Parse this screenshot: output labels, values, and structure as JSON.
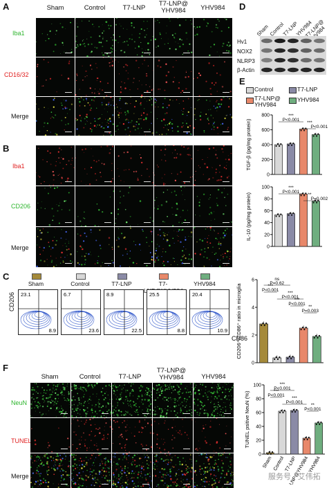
{
  "panels": {
    "A": "A",
    "B": "B",
    "C": "C",
    "D": "D",
    "E": "E",
    "F": "F"
  },
  "groups": [
    "Sham",
    "Control",
    "T7-LNP",
    "T7-LNP@\nYHV984",
    "YHV984"
  ],
  "panelA": {
    "rows": [
      "Iba1",
      "CD16/32",
      "Merge"
    ],
    "row_colors": [
      "#2db52d",
      "#e02020",
      "#111111"
    ]
  },
  "panelB": {
    "rows": [
      "Iba1",
      "CD206",
      "Merge"
    ],
    "row_colors": [
      "#e02020",
      "#2db52d",
      "#111111"
    ]
  },
  "panelD": {
    "lanes": [
      "Sham",
      "Control",
      "T7-LNP",
      "YHV984",
      "T7-LNP@\nYHV984"
    ],
    "blots": [
      "Hv1",
      "NOX2",
      "NLRP3",
      "β-Actin"
    ]
  },
  "panelC": {
    "legend": [
      "Sham",
      "Control",
      "T7-LNP",
      "T7-LNP@YHV984",
      "YHV984"
    ],
    "legend_colors": [
      "#a58a3a",
      "#d8d8d8",
      "#8a8aa6",
      "#e8886a",
      "#6fae7f"
    ],
    "ylabel": "CD206",
    "xlabel": "CD86",
    "quadrants": [
      {
        "ul": "23.1",
        "lr": "8.9"
      },
      {
        "ul": "6.7",
        "lr": "23.6"
      },
      {
        "ul": "8.9",
        "lr": "22.5"
      },
      {
        "ul": "25.5",
        "lr": "8.8"
      },
      {
        "ul": "20.4",
        "lr": "10.9"
      }
    ]
  },
  "panelF": {
    "groups": [
      "Sham",
      "Control",
      "T7-LNP",
      "T7-LNP@\nYHV984",
      "YHV984"
    ],
    "rows": [
      "NeuN",
      "TUNEL",
      "Merge"
    ],
    "row_colors": [
      "#2db52d",
      "#e02020",
      "#111111"
    ]
  },
  "colors": {
    "sham": "#a58a3a",
    "control": "#d8d8d8",
    "t7lnp": "#8a8aa6",
    "t7yhv": "#e8886a",
    "yhv": "#6fae7f"
  },
  "chart_data": [
    {
      "type": "bar",
      "panel": "E-top",
      "categories": [
        "Control",
        "T7-LNP",
        "T7-LNP@YHV984",
        "YHV984"
      ],
      "values": [
        400,
        410,
        610,
        535
      ],
      "ylabel": "TGF-β (pg/mg protein)",
      "ylim": [
        0,
        800
      ],
      "yticks": [
        0,
        200,
        400,
        600,
        800
      ],
      "annotations": [
        "***",
        "P<0.001",
        "***",
        "P<0.001"
      ]
    },
    {
      "type": "bar",
      "panel": "E-bottom",
      "categories": [
        "Control",
        "T7-LNP",
        "T7-LNP@YHV984",
        "YHV984"
      ],
      "values": [
        53,
        55,
        88,
        76
      ],
      "ylabel": "IL-10 (pg/mg protein)",
      "ylim": [
        0,
        100
      ],
      "yticks": [
        0,
        20,
        40,
        60,
        80,
        100
      ],
      "annotations": [
        "***",
        "P<0.001",
        "**",
        "P=0.002"
      ]
    },
    {
      "type": "bar",
      "panel": "C-right",
      "categories": [
        "Sham",
        "Control",
        "T7-LNP",
        "T7-LNP@YHV984",
        "YHV984"
      ],
      "values": [
        2.8,
        0.35,
        0.4,
        2.5,
        1.9
      ],
      "ylabel": "CD206⁺/CD86⁺ ratio in microglia",
      "ylim": [
        0,
        6
      ],
      "yticks": [
        0,
        2,
        4,
        6
      ],
      "annotations": [
        "ns",
        "P=0.62",
        "***",
        "P<0.001",
        "***",
        "P<0.001",
        "***",
        "P<0.001",
        "**",
        "P=0.003"
      ]
    },
    {
      "type": "bar",
      "panel": "F-right",
      "categories": [
        "Sham",
        "Control",
        "T7-LNP",
        "T7-LNP@YHV984",
        "YHV984"
      ],
      "values": [
        2,
        62,
        63,
        23,
        45
      ],
      "ylabel": "TUNEL psitive NeuN (%)",
      "ylim": [
        0,
        100
      ],
      "yticks": [
        0,
        20,
        40,
        60,
        80,
        100
      ],
      "annotations": [
        "***",
        "P<0.001",
        "***",
        "P<0.001",
        "***",
        "P<0.001",
        "**",
        "P<0.001"
      ]
    }
  ],
  "watermark": "服务号 · 艾伟拓"
}
